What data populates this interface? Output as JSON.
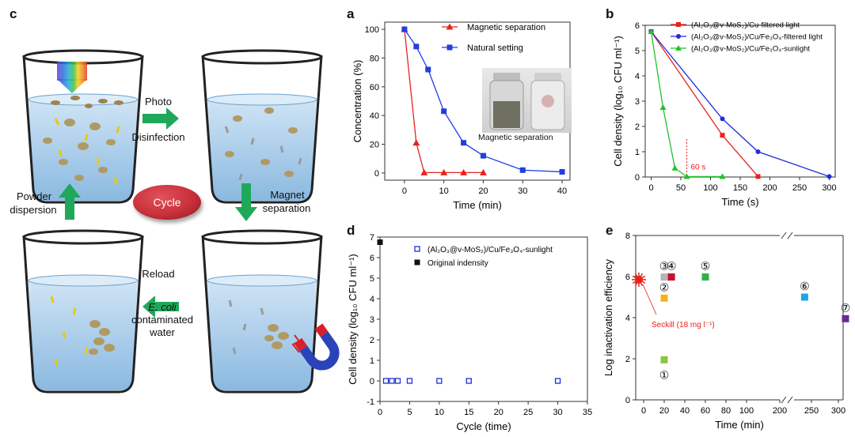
{
  "schematic": {
    "panel_label": "c",
    "photo_label_1": "Photo",
    "photo_label_2": "Disinfection",
    "magnet_label_1": "Magnet",
    "magnet_label_2": "separation",
    "reload_label": "Reload",
    "ecoli_label_1": "E. coli",
    "ecoli_label_2": "contaminated",
    "ecoli_label_3": "water",
    "powder_label_1": "Powder",
    "powder_label_2": "dispersion",
    "cycle_label": "Cycle",
    "colors": {
      "water": "#a9cdea",
      "arrow": "#1fa85a",
      "cycle": "#c9303a"
    }
  },
  "chart_data": [
    {
      "panel": "a",
      "type": "line",
      "xlabel": "Time (min)",
      "ylabel": "Concentration (%)",
      "xlim": [
        -5,
        42
      ],
      "ylim": [
        -5,
        105
      ],
      "xticks": [
        "0",
        "10",
        "20",
        "30",
        "40"
      ],
      "yticks": [
        "0",
        "20",
        "40",
        "60",
        "80",
        "100"
      ],
      "series": [
        {
          "name": "Magnetic separation",
          "color": "#e8221d",
          "marker": "triangle",
          "x": [
            0,
            3,
            5,
            10,
            15,
            20
          ],
          "y": [
            100,
            21,
            0.3,
            0.3,
            0.3,
            0.3
          ]
        },
        {
          "name": "Natural setting",
          "color": "#1f3fe0",
          "marker": "square",
          "x": [
            0,
            3,
            6,
            10,
            15,
            20,
            30,
            40
          ],
          "y": [
            100,
            88,
            72,
            43,
            21,
            12,
            2,
            0.8
          ]
        }
      ],
      "inset_caption": "Magnetic separation"
    },
    {
      "panel": "b",
      "type": "line",
      "xlabel": "Time (s)",
      "ylabel": "Cell density (log10 CFU ml−1)",
      "xlim": [
        -10,
        310
      ],
      "ylim": [
        0,
        6
      ],
      "xticks": [
        "0",
        "50",
        "100",
        "150",
        "200",
        "250",
        "300"
      ],
      "yticks": [
        "0",
        "1",
        "2",
        "3",
        "4",
        "5",
        "6"
      ],
      "series": [
        {
          "name": "(Al2O3@v-MoS2)/Cu-filtered light",
          "color": "#e8221d",
          "marker": "square",
          "x": [
            0,
            120,
            180
          ],
          "y": [
            5.75,
            1.65,
            0.02
          ]
        },
        {
          "name": "(Al2O3@v-MoS2)/Cu/Fe3O4-filtered light",
          "color": "#1f2fd6",
          "marker": "circle",
          "x": [
            0,
            120,
            180,
            300
          ],
          "y": [
            5.75,
            2.3,
            1.0,
            0.02
          ]
        },
        {
          "name": "(Al2O3@v-MoS2)/Cu/Fe3O4-sunlight",
          "color": "#22c22a",
          "marker": "triangle",
          "x": [
            0,
            20,
            40,
            60,
            120
          ],
          "y": [
            5.75,
            2.75,
            0.35,
            0.02,
            0.02
          ]
        }
      ],
      "annotation": "60 s"
    },
    {
      "panel": "d",
      "type": "scatter",
      "xlabel": "Cycle (time)",
      "ylabel": "Cell density (log10 CFU ml−1)",
      "xlim": [
        0,
        35
      ],
      "ylim": [
        -1,
        7
      ],
      "xticks": [
        "0",
        "5",
        "10",
        "15",
        "20",
        "25",
        "30",
        "35"
      ],
      "yticks": [
        "-1",
        "0",
        "1",
        "2",
        "3",
        "4",
        "5",
        "6",
        "7"
      ],
      "series": [
        {
          "name": "(Al2O3@v-MoS2)/Cu/Fe3O4-sunlight",
          "color": "#1f2fd6",
          "marker": "open-square",
          "x": [
            1,
            2,
            3,
            5,
            10,
            15,
            30
          ],
          "y": [
            0,
            0,
            0,
            0,
            0,
            0,
            0
          ]
        },
        {
          "name": "Original indensity",
          "color": "#111111",
          "marker": "square",
          "x": [
            0
          ],
          "y": [
            6.75
          ]
        }
      ]
    },
    {
      "panel": "e",
      "type": "scatter",
      "xlabel": "Time (min)",
      "ylabel": "Log inactivation efficiency",
      "ylim": [
        0,
        8
      ],
      "xticks": [
        "0",
        "20",
        "40",
        "60",
        "80",
        "100",
        "200",
        "250",
        "300"
      ],
      "yticks": [
        "0",
        "2",
        "4",
        "6",
        "8"
      ],
      "points": [
        {
          "label": "①",
          "x": 20,
          "y": 1.95,
          "color": "#8bc53f"
        },
        {
          "label": "②",
          "x": 20,
          "y": 4.95,
          "color": "#f6b21a"
        },
        {
          "label": "③",
          "x": 20,
          "y": 5.98,
          "color": "#b5b5b5"
        },
        {
          "label": "④",
          "x": 27,
          "y": 5.98,
          "color": "#c8102e"
        },
        {
          "label": "⑤",
          "x": 60,
          "y": 5.98,
          "color": "#2db34a"
        },
        {
          "label": "⑥",
          "x": 240,
          "y": 5.0,
          "color": "#1ca7e0"
        },
        {
          "label": "⑦",
          "x": 300,
          "y": 3.95,
          "color": "#6a2c91"
        }
      ],
      "seckill": {
        "x": 0,
        "y": 5.85,
        "color": "#e8221d",
        "label": "Seckill (18 mg l−1)"
      }
    }
  ]
}
